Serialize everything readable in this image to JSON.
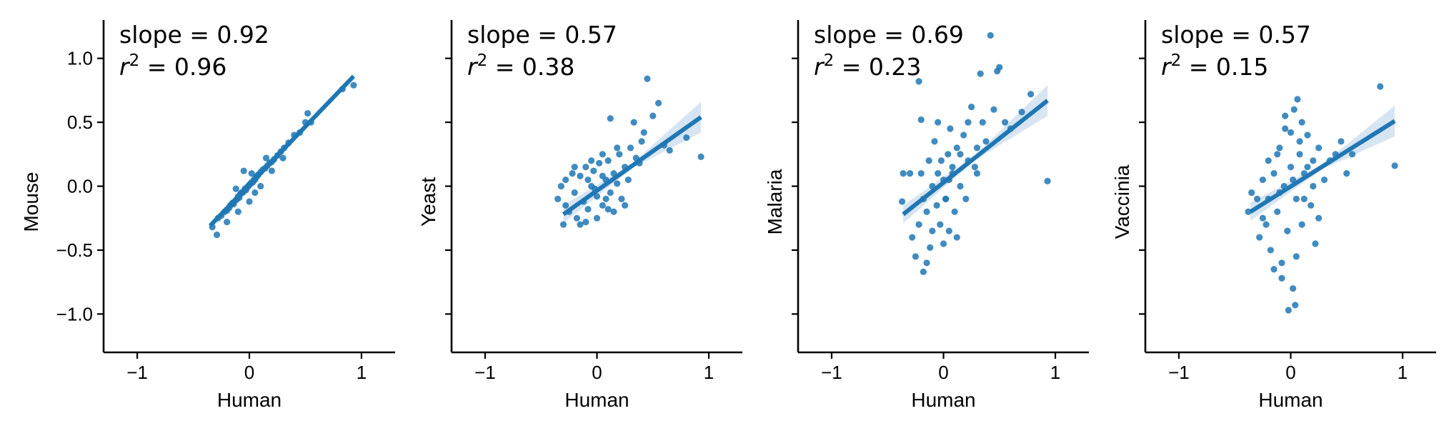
{
  "chart_data": [
    {
      "type": "scatter",
      "xlabel": "Human",
      "ylabel": "Mouse",
      "annotation": {
        "slope_text": "slope = 0.92",
        "r2_prefix": "r",
        "r2_sup": "2",
        "r2_value": " = 0.96"
      },
      "xlim": [
        -1.3,
        1.3
      ],
      "ylim": [
        -1.3,
        1.3
      ],
      "xticks": [
        -1,
        0,
        1
      ],
      "xtick_labels": [
        "−1",
        "0",
        "1"
      ],
      "yticks": [
        1.0,
        0.5,
        0.0,
        -0.5,
        -1.0
      ],
      "ytick_labels": [
        "1.0",
        "0.5",
        "0.0",
        "−0.5",
        "−1.0"
      ],
      "show_ytick_labels": true,
      "regression": {
        "x0": -0.35,
        "y0": -0.31,
        "x1": 0.93,
        "y1": 0.86
      },
      "points": [
        [
          -0.33,
          -0.32
        ],
        [
          -0.29,
          -0.38
        ],
        [
          -0.28,
          -0.25
        ],
        [
          -0.25,
          -0.23
        ],
        [
          -0.22,
          -0.2
        ],
        [
          -0.2,
          -0.19
        ],
        [
          -0.18,
          -0.17
        ],
        [
          -0.17,
          -0.15
        ],
        [
          -0.15,
          -0.13
        ],
        [
          -0.14,
          -0.14
        ],
        [
          -0.12,
          -0.11
        ],
        [
          -0.11,
          -0.1
        ],
        [
          -0.1,
          -0.08
        ],
        [
          -0.09,
          -0.09
        ],
        [
          -0.08,
          -0.06
        ],
        [
          -0.07,
          -0.05
        ],
        [
          -0.06,
          -0.05
        ],
        [
          -0.05,
          -0.04
        ],
        [
          -0.04,
          -0.02
        ],
        [
          -0.03,
          -0.03
        ],
        [
          -0.02,
          -0.01
        ],
        [
          -0.01,
          0.0
        ],
        [
          0.0,
          0.01
        ],
        [
          0.01,
          0.02
        ],
        [
          0.02,
          0.03
        ],
        [
          0.03,
          0.03
        ],
        [
          0.04,
          0.05
        ],
        [
          0.05,
          0.05
        ],
        [
          0.06,
          0.07
        ],
        [
          0.07,
          0.08
        ],
        [
          0.08,
          0.09
        ],
        [
          0.1,
          0.11
        ],
        [
          0.12,
          0.13
        ],
        [
          0.14,
          0.14
        ],
        [
          0.16,
          0.16
        ],
        [
          0.18,
          0.18
        ],
        [
          0.2,
          0.19
        ],
        [
          0.22,
          0.21
        ],
        [
          0.25,
          0.24
        ],
        [
          0.28,
          0.27
        ],
        [
          0.31,
          0.3
        ],
        [
          0.35,
          0.34
        ],
        [
          0.4,
          0.4
        ],
        [
          0.45,
          0.42
        ],
        [
          0.5,
          0.5
        ],
        [
          0.52,
          0.57
        ],
        [
          0.55,
          0.5
        ],
        [
          0.83,
          0.76
        ],
        [
          0.93,
          0.79
        ],
        [
          -0.05,
          0.12
        ],
        [
          0.02,
          0.1
        ],
        [
          -0.1,
          -0.2
        ],
        [
          0.1,
          0.0
        ],
        [
          0.0,
          -0.12
        ],
        [
          -0.2,
          -0.28
        ],
        [
          0.15,
          0.22
        ],
        [
          0.3,
          0.22
        ],
        [
          -0.12,
          -0.02
        ],
        [
          0.05,
          -0.05
        ],
        [
          0.2,
          0.12
        ]
      ]
    },
    {
      "type": "scatter",
      "xlabel": "Human",
      "ylabel": "Yeast",
      "annotation": {
        "slope_text": "slope = 0.57",
        "r2_prefix": "r",
        "r2_sup": "2",
        "r2_value": " = 0.38"
      },
      "xlim": [
        -1.3,
        1.3
      ],
      "ylim": [
        -1.3,
        1.3
      ],
      "xticks": [
        -1,
        0,
        1
      ],
      "xtick_labels": [
        "−1",
        "0",
        "1"
      ],
      "yticks": [
        1.0,
        0.5,
        0.0,
        -0.5,
        -1.0
      ],
      "ytick_labels": [
        "",
        "",
        "",
        "",
        ""
      ],
      "show_ytick_labels": false,
      "regression": {
        "x0": -0.3,
        "y0": -0.22,
        "x1": 0.93,
        "y1": 0.54
      },
      "points": [
        [
          -0.35,
          -0.1
        ],
        [
          -0.3,
          -0.3
        ],
        [
          -0.28,
          0.05
        ],
        [
          -0.25,
          -0.2
        ],
        [
          -0.22,
          0.1
        ],
        [
          -0.2,
          -0.05
        ],
        [
          -0.18,
          -0.25
        ],
        [
          -0.15,
          0.08
        ],
        [
          -0.12,
          -0.12
        ],
        [
          -0.1,
          0.15
        ],
        [
          -0.08,
          -0.18
        ],
        [
          -0.05,
          0.0
        ],
        [
          -0.03,
          0.12
        ],
        [
          0.0,
          -0.08
        ],
        [
          0.02,
          0.18
        ],
        [
          0.05,
          -0.15
        ],
        [
          0.08,
          0.05
        ],
        [
          0.1,
          0.2
        ],
        [
          0.12,
          -0.05
        ],
        [
          0.15,
          0.1
        ],
        [
          0.18,
          0.02
        ],
        [
          0.2,
          0.25
        ],
        [
          0.22,
          -0.1
        ],
        [
          0.25,
          0.15
        ],
        [
          0.3,
          0.3
        ],
        [
          0.35,
          0.22
        ],
        [
          0.4,
          0.35
        ],
        [
          0.42,
          0.42
        ],
        [
          0.45,
          0.84
        ],
        [
          0.5,
          0.55
        ],
        [
          0.55,
          0.65
        ],
        [
          0.6,
          0.32
        ],
        [
          0.65,
          0.28
        ],
        [
          0.8,
          0.38
        ],
        [
          0.93,
          0.23
        ],
        [
          0.12,
          0.53
        ],
        [
          0.33,
          0.5
        ],
        [
          -0.1,
          -0.28
        ],
        [
          0.0,
          -0.25
        ],
        [
          0.1,
          -0.18
        ],
        [
          -0.2,
          0.15
        ],
        [
          -0.05,
          0.2
        ],
        [
          0.05,
          0.25
        ],
        [
          0.15,
          -0.2
        ],
        [
          -0.28,
          -0.15
        ],
        [
          -0.15,
          -0.3
        ],
        [
          0.05,
          0.08
        ],
        [
          -0.08,
          0.05
        ],
        [
          0.08,
          -0.1
        ],
        [
          -0.02,
          -0.02
        ],
        [
          0.18,
          0.3
        ],
        [
          0.28,
          0.05
        ],
        [
          0.38,
          0.18
        ],
        [
          -0.32,
          0.0
        ],
        [
          0.25,
          -0.15
        ]
      ]
    },
    {
      "type": "scatter",
      "xlabel": "Human",
      "ylabel": "Malaria",
      "annotation": {
        "slope_text": "slope = 0.69",
        "r2_prefix": "r",
        "r2_sup": "2",
        "r2_value": " = 0.23"
      },
      "xlim": [
        -1.3,
        1.3
      ],
      "ylim": [
        -1.3,
        1.3
      ],
      "xticks": [
        -1,
        0,
        1
      ],
      "xtick_labels": [
        "−1",
        "0",
        "1"
      ],
      "yticks": [
        1.0,
        0.5,
        0.0,
        -0.5,
        -1.0
      ],
      "ytick_labels": [
        "",
        "",
        "",
        "",
        ""
      ],
      "show_ytick_labels": false,
      "regression": {
        "x0": -0.36,
        "y0": -0.22,
        "x1": 0.93,
        "y1": 0.67
      },
      "points": [
        [
          -0.37,
          -0.12
        ],
        [
          -0.3,
          0.1
        ],
        [
          -0.28,
          -0.4
        ],
        [
          -0.25,
          -0.55
        ],
        [
          -0.22,
          -0.3
        ],
        [
          -0.2,
          0.1
        ],
        [
          -0.18,
          -0.67
        ],
        [
          -0.15,
          -0.2
        ],
        [
          -0.13,
          0.2
        ],
        [
          -0.12,
          -0.48
        ],
        [
          -0.1,
          0.0
        ],
        [
          -0.08,
          0.35
        ],
        [
          -0.06,
          -0.15
        ],
        [
          -0.05,
          0.5
        ],
        [
          -0.03,
          -0.3
        ],
        [
          0.0,
          0.05
        ],
        [
          0.02,
          -0.1
        ],
        [
          0.04,
          0.25
        ],
        [
          0.05,
          -0.35
        ],
        [
          0.06,
          0.45
        ],
        [
          0.08,
          0.1
        ],
        [
          0.1,
          -0.2
        ],
        [
          0.12,
          0.3
        ],
        [
          0.15,
          0.0
        ],
        [
          0.18,
          0.4
        ],
        [
          0.2,
          -0.1
        ],
        [
          0.22,
          0.2
        ],
        [
          0.25,
          0.62
        ],
        [
          0.28,
          0.15
        ],
        [
          0.3,
          0.3
        ],
        [
          0.33,
          0.88
        ],
        [
          0.35,
          0.5
        ],
        [
          0.38,
          0.35
        ],
        [
          0.42,
          1.18
        ],
        [
          0.45,
          0.6
        ],
        [
          0.48,
          0.9
        ],
        [
          0.5,
          0.93
        ],
        [
          0.55,
          0.5
        ],
        [
          0.6,
          0.45
        ],
        [
          0.7,
          0.58
        ],
        [
          0.78,
          0.72
        ],
        [
          0.93,
          0.04
        ],
        [
          -0.22,
          0.82
        ],
        [
          -0.2,
          0.52
        ],
        [
          -0.36,
          0.1
        ],
        [
          0.0,
          -0.45
        ],
        [
          -0.15,
          -0.6
        ],
        [
          0.02,
          -0.1
        ],
        [
          -0.05,
          0.1
        ],
        [
          0.08,
          0.15
        ],
        [
          0.12,
          -0.4
        ],
        [
          -0.1,
          -0.35
        ],
        [
          0.15,
          0.25
        ],
        [
          0.3,
          0.1
        ],
        [
          0.22,
          0.5
        ],
        [
          -0.18,
          -0.1
        ],
        [
          0.05,
          0.05
        ],
        [
          -0.02,
          0.2
        ]
      ]
    },
    {
      "type": "scatter",
      "xlabel": "Human",
      "ylabel": "Vaccinia",
      "annotation": {
        "slope_text": "slope = 0.57",
        "r2_prefix": "r",
        "r2_sup": "2",
        "r2_value": " = 0.15"
      },
      "xlim": [
        -1.3,
        1.3
      ],
      "ylim": [
        -1.3,
        1.3
      ],
      "xticks": [
        -1,
        0,
        1
      ],
      "xtick_labels": [
        "−1",
        "0",
        "1"
      ],
      "yticks": [
        1.0,
        0.5,
        0.0,
        -0.5,
        -1.0
      ],
      "ytick_labels": [
        "",
        "",
        "",
        "",
        ""
      ],
      "show_ytick_labels": false,
      "regression": {
        "x0": -0.36,
        "y0": -0.2,
        "x1": 0.93,
        "y1": 0.51
      },
      "points": [
        [
          -0.38,
          -0.2
        ],
        [
          -0.3,
          -0.1
        ],
        [
          -0.28,
          -0.4
        ],
        [
          -0.25,
          0.05
        ],
        [
          -0.22,
          -0.3
        ],
        [
          -0.2,
          0.2
        ],
        [
          -0.18,
          -0.5
        ],
        [
          -0.15,
          0.1
        ],
        [
          -0.12,
          -0.2
        ],
        [
          -0.1,
          0.3
        ],
        [
          -0.08,
          -0.6
        ],
        [
          -0.06,
          0.0
        ],
        [
          -0.05,
          0.45
        ],
        [
          -0.03,
          -0.35
        ],
        [
          0.0,
          0.15
        ],
        [
          0.02,
          -0.8
        ],
        [
          0.03,
          0.6
        ],
        [
          0.05,
          -0.1
        ],
        [
          0.06,
          0.68
        ],
        [
          0.08,
          0.25
        ],
        [
          0.1,
          -0.3
        ],
        [
          0.12,
          0.1
        ],
        [
          0.15,
          0.4
        ],
        [
          0.18,
          -0.15
        ],
        [
          0.2,
          0.2
        ],
        [
          0.22,
          -0.45
        ],
        [
          0.25,
          0.3
        ],
        [
          0.3,
          0.05
        ],
        [
          0.35,
          0.2
        ],
        [
          0.4,
          0.25
        ],
        [
          0.45,
          0.35
        ],
        [
          0.5,
          0.1
        ],
        [
          0.55,
          0.25
        ],
        [
          0.8,
          0.78
        ],
        [
          0.93,
          0.16
        ],
        [
          -0.02,
          -0.97
        ],
        [
          0.04,
          -0.93
        ],
        [
          -0.08,
          -0.72
        ],
        [
          -0.15,
          -0.65
        ],
        [
          -0.2,
          -0.1
        ],
        [
          0.0,
          0.42
        ],
        [
          -0.05,
          0.55
        ],
        [
          0.1,
          0.5
        ],
        [
          0.02,
          0.05
        ],
        [
          -0.1,
          -0.05
        ],
        [
          0.12,
          -0.1
        ],
        [
          0.2,
          0.0
        ],
        [
          -0.25,
          -0.25
        ],
        [
          0.15,
          0.15
        ],
        [
          0.05,
          -0.55
        ],
        [
          -0.12,
          0.25
        ],
        [
          0.25,
          -0.25
        ],
        [
          -0.35,
          -0.05
        ],
        [
          0.08,
          0.35
        ]
      ]
    }
  ],
  "colors": {
    "point": "#1f77b4",
    "line": "#1f77b4",
    "ci_band": "#c6d9ec",
    "axis": "#000000"
  }
}
